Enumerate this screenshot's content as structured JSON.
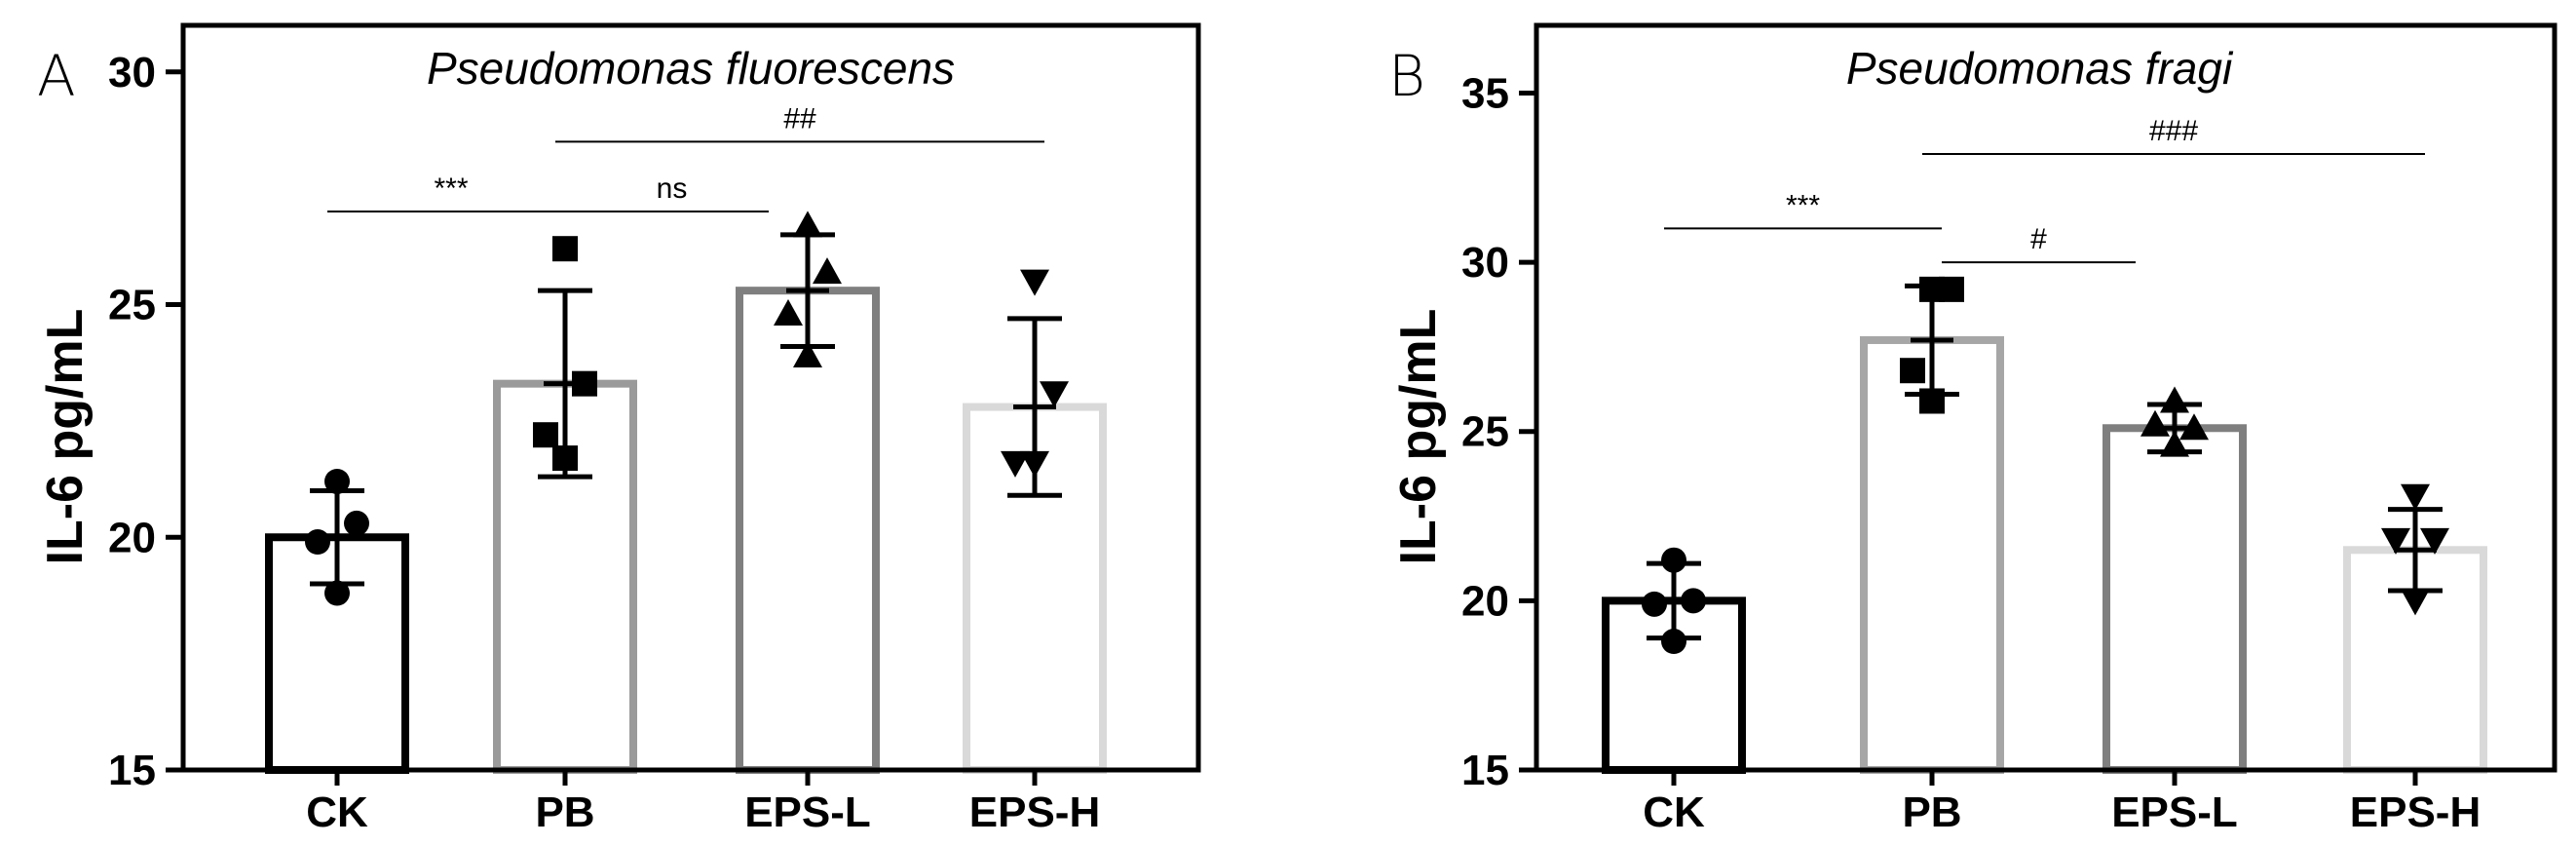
{
  "chart_data": [
    {
      "type": "bar",
      "panel": "A",
      "title": "Pseudomonas fluorescens",
      "ylabel": "IL-6 pg/mL",
      "xlabel": "",
      "ylim": [
        15,
        31
      ],
      "yticks": [
        15,
        20,
        25,
        30
      ],
      "ytick_labels": [
        "15",
        "20",
        "25",
        "30"
      ],
      "categories": [
        "CK",
        "PB",
        "EPS-L",
        "EPS-H"
      ],
      "values": [
        20.0,
        23.3,
        25.3,
        22.8
      ],
      "errors": [
        1.0,
        2.0,
        1.2,
        1.9
      ],
      "points": [
        [
          21.2,
          20.3,
          19.9,
          18.8
        ],
        [
          26.2,
          23.3,
          22.2,
          21.7
        ],
        [
          26.7,
          25.7,
          24.8,
          23.9
        ],
        [
          25.5,
          23.1,
          21.6,
          21.6
        ]
      ],
      "marker_shapes": [
        "circle",
        "square",
        "triangle-up",
        "triangle-down"
      ],
      "bar_colors": [
        "#000000",
        "#9a9a9a",
        "#7f7f7f",
        "#d9d9d9"
      ],
      "annotations": [
        {
          "text": "***",
          "from": "CK",
          "to": "PB",
          "y": 27.0
        },
        {
          "text": "ns",
          "from": "PB",
          "to": "EPS-L",
          "y": 27.0
        },
        {
          "text": "##",
          "from": "PB",
          "to": "EPS-H",
          "y": 28.5
        }
      ]
    },
    {
      "type": "bar",
      "panel": "B",
      "title": "Pseudomonas fragi",
      "ylabel": "IL-6 pg/mL",
      "xlabel": "",
      "ylim": [
        15,
        37
      ],
      "yticks": [
        15,
        20,
        25,
        30,
        35
      ],
      "ytick_labels": [
        "15",
        "20",
        "25",
        "30",
        "35"
      ],
      "categories": [
        "CK",
        "PB",
        "EPS-L",
        "EPS-H"
      ],
      "values": [
        20.0,
        27.7,
        25.1,
        21.5
      ],
      "errors": [
        1.1,
        1.6,
        0.7,
        1.2
      ],
      "points": [
        [
          21.2,
          20.0,
          19.9,
          18.8
        ],
        [
          29.2,
          29.2,
          26.8,
          25.9
        ],
        [
          25.9,
          25.1,
          25.2,
          24.6
        ],
        [
          23.1,
          21.8,
          21.8,
          20.0
        ]
      ],
      "marker_shapes": [
        "circle",
        "square",
        "triangle-up",
        "triangle-down"
      ],
      "bar_colors": [
        "#000000",
        "#a6a6a6",
        "#7f7f7f",
        "#d9d9d9"
      ],
      "annotations": [
        {
          "text": "***",
          "from": "CK",
          "to": "PB",
          "y": 31.0
        },
        {
          "text": "#",
          "from": "PB",
          "to": "EPS-L",
          "y": 30.0
        },
        {
          "text": "###",
          "from": "PB",
          "to": "EPS-H",
          "y": 33.2
        }
      ]
    }
  ]
}
